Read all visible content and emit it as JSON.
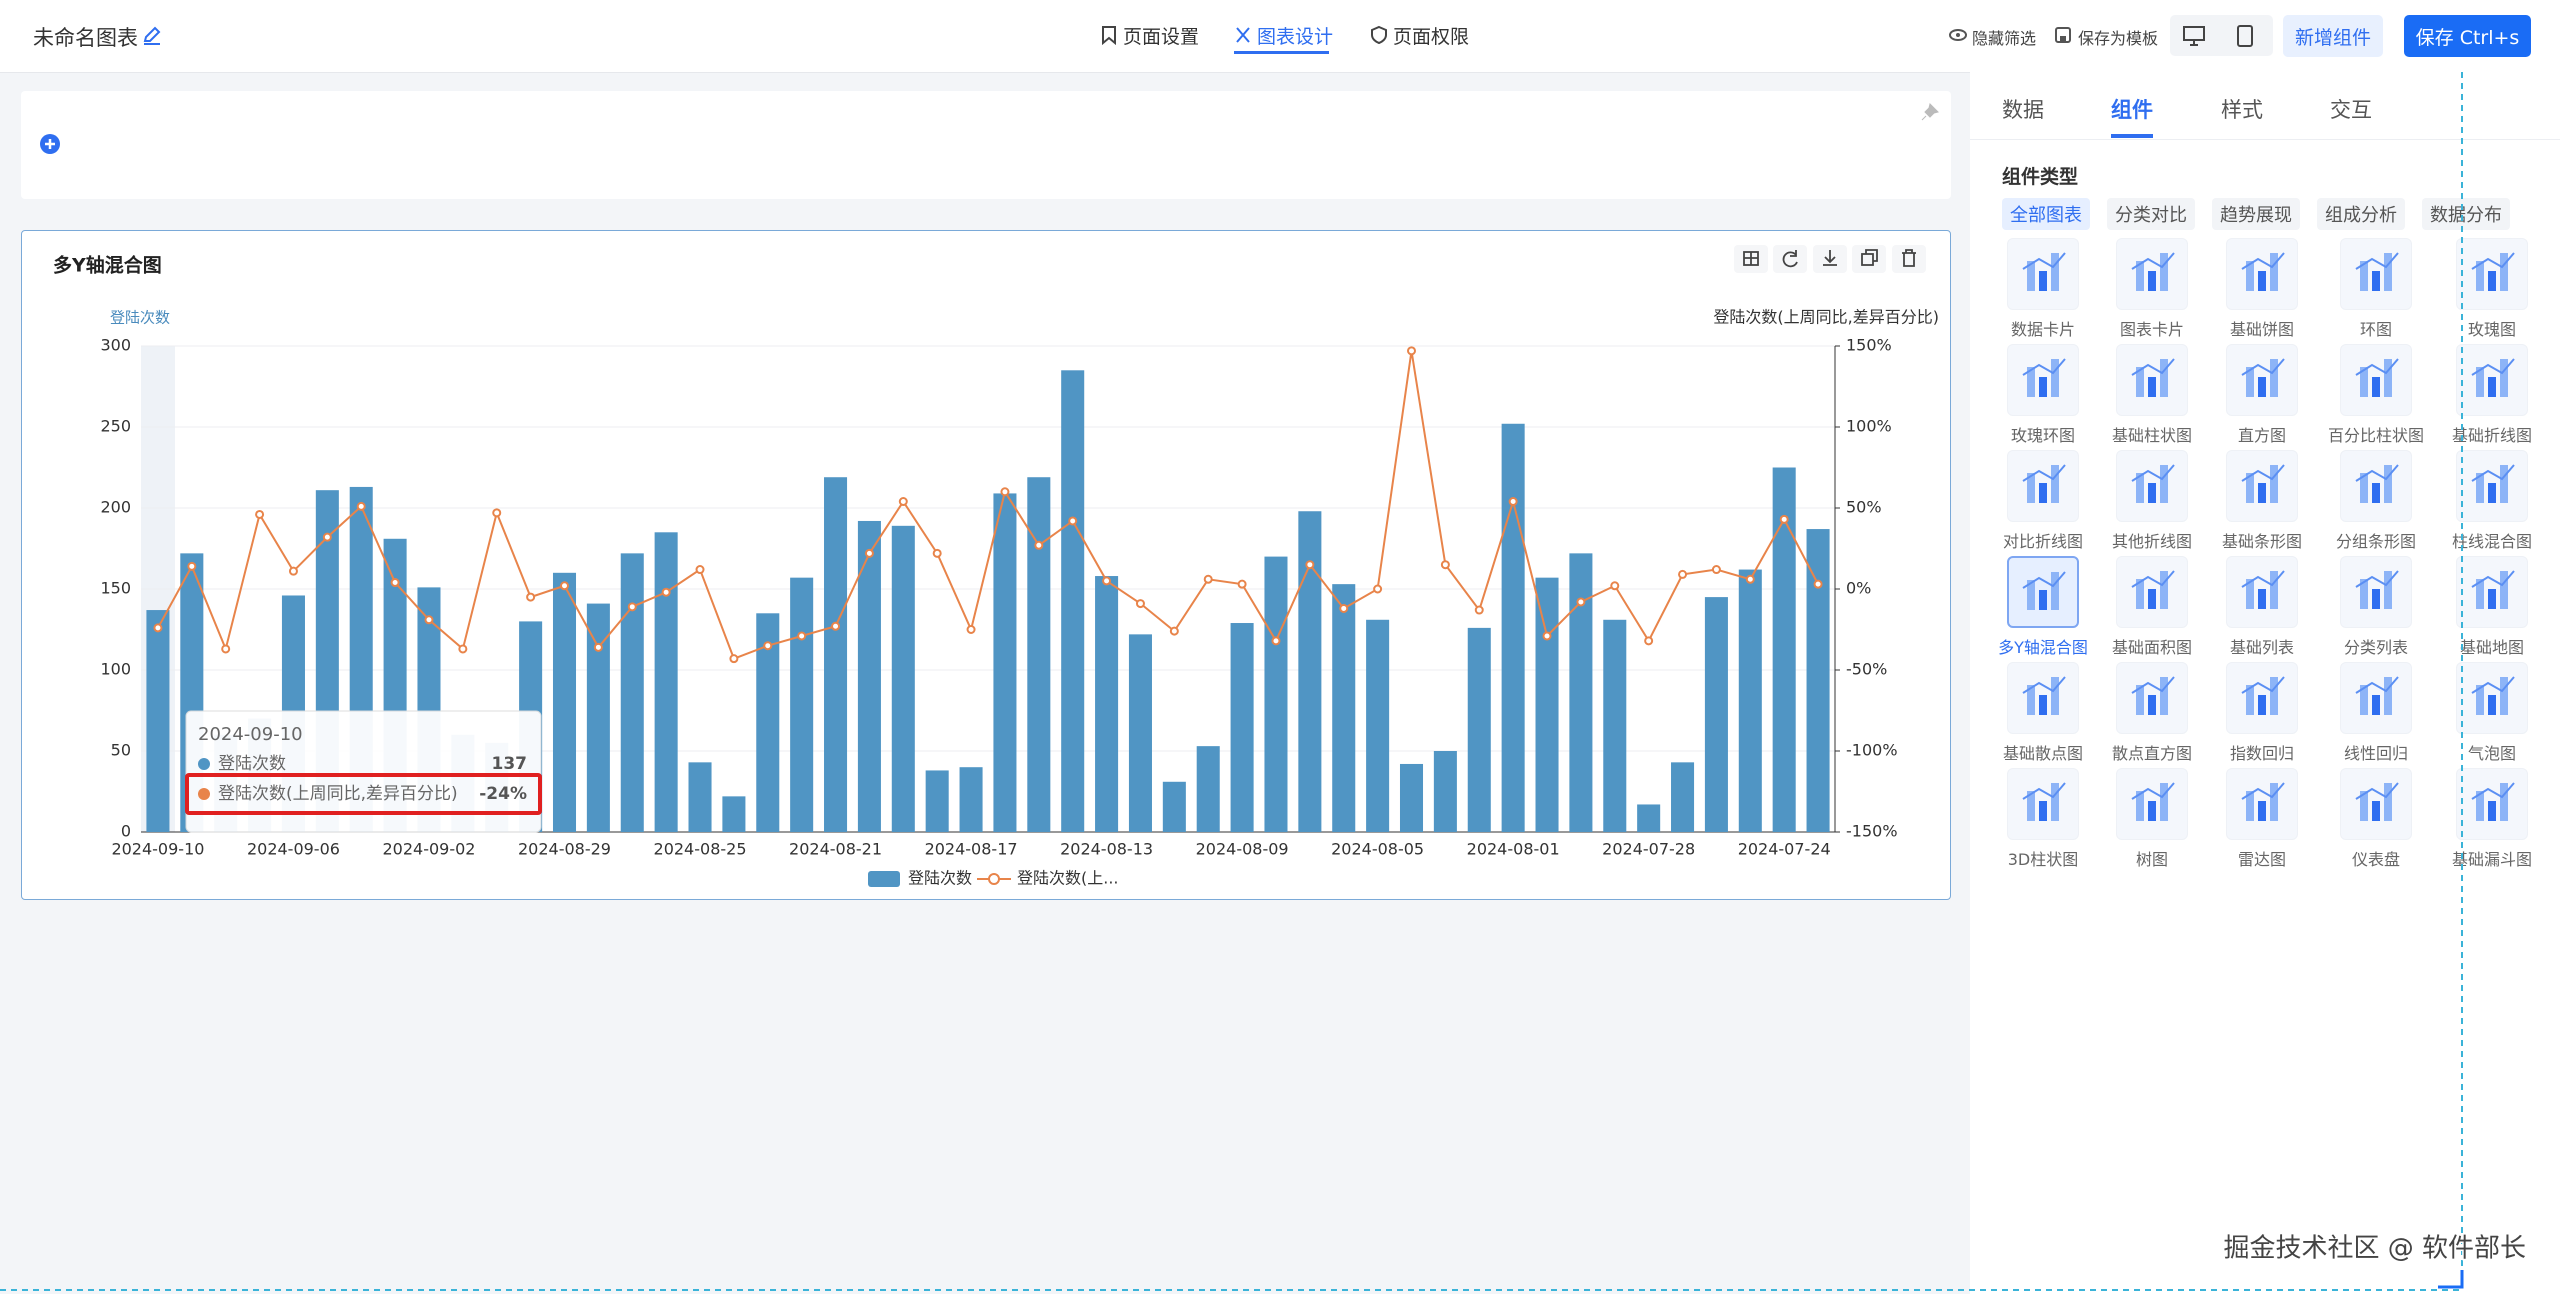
{
  "header": {
    "title": "未命名图表",
    "tabs": [
      "页面设置",
      "图表设计",
      "页面权限"
    ],
    "actions": [
      "隐藏筛选",
      "保存为模板"
    ],
    "buttons": [
      "新增组件",
      "保存 Ctrl+s"
    ]
  },
  "chart_data": {
    "type": "bar",
    "title": "多Y轴混合图",
    "ylabel": "登陆次数",
    "y2label": "登陆次数(上周同比,差异百分比)",
    "categories": [
      "2024-09-10",
      null,
      null,
      null,
      "2024-09-06",
      null,
      null,
      null,
      "2024-09-02",
      null,
      null,
      null,
      "2024-08-29",
      null,
      null,
      null,
      "2024-08-25",
      null,
      null,
      null,
      "2024-08-21",
      null,
      null,
      null,
      "2024-08-17",
      null,
      null,
      null,
      "2024-08-13",
      null,
      null,
      null,
      "2024-08-09",
      null,
      null,
      null,
      "2024-08-05",
      null,
      null,
      null,
      "2024-08-01",
      null,
      null,
      null,
      "2024-07-28",
      null,
      null,
      null,
      "2024-07-24",
      null
    ],
    "series": [
      {
        "name": "登陆次数",
        "color": "#5095c4",
        "values": [
          137,
          172,
          60,
          70,
          146,
          211,
          213,
          181,
          151,
          60,
          55,
          130,
          160,
          141,
          172,
          185,
          43,
          22,
          135,
          157,
          219,
          192,
          189,
          38,
          40,
          209,
          219,
          285,
          158,
          122,
          31,
          53,
          129,
          170,
          198,
          153,
          131,
          42,
          50,
          126,
          252,
          157,
          172,
          131,
          17,
          43,
          145,
          162,
          225,
          187
        ]
      },
      {
        "name": "登陆次数(上周同比,差异百分比)",
        "type": "line",
        "axis": "y2",
        "color": "#e8844a",
        "values": [
          -24,
          14,
          -37,
          46,
          11,
          32,
          51,
          4,
          -19,
          -37,
          47,
          -5,
          2,
          -36,
          -11,
          -2,
          12,
          -43,
          -35,
          -29,
          -23,
          22,
          54,
          22,
          -25,
          60,
          27,
          42,
          5,
          -9,
          -26,
          6,
          3,
          -32,
          15,
          -12,
          0,
          147,
          15,
          -13,
          54,
          -29,
          -8,
          2,
          -32,
          9,
          12,
          6,
          43,
          3
        ]
      }
    ],
    "ylim": [
      0,
      300
    ],
    "yticks": [
      0,
      50,
      100,
      150,
      200,
      250,
      300
    ],
    "y2lim": [
      -150,
      150
    ],
    "y2ticks": [
      {
        "value": -150,
        "label": "-150%"
      },
      {
        "value": -100,
        "label": "-100%"
      },
      {
        "value": -50,
        "label": "-50%"
      },
      {
        "value": 0,
        "label": "0%"
      },
      {
        "value": 50,
        "label": "50%"
      },
      {
        "value": 100,
        "label": "100%"
      },
      {
        "value": 150,
        "label": "150%"
      }
    ],
    "grid": true,
    "legend": [
      "登陆次数",
      "登陆次数(上..."
    ]
  },
  "tooltip": {
    "title": "2024-09-10",
    "rows": [
      [
        "登陆次数",
        "137"
      ],
      [
        "登陆次数(上周同比,差异百分比)",
        "-24%"
      ]
    ]
  },
  "sidebar": {
    "tabs": [
      "数据",
      "组件",
      "样式",
      "交互"
    ],
    "section": "组件类型",
    "filters": [
      "全部图表",
      "分类对比",
      "趋势展现",
      "组成分析",
      "数据分布"
    ],
    "components": [
      "数据卡片",
      "图表卡片",
      "基础饼图",
      "环图",
      "玫瑰图",
      "玫瑰环图",
      "基础柱状图",
      "直方图",
      "百分比柱状图",
      "基础折线图",
      "对比折线图",
      "其他折线图",
      "基础条形图",
      "分组条形图",
      "柱线混合图",
      "多Y轴混合图",
      "基础面积图",
      "基础列表",
      "分类列表",
      "基础地图",
      "基础散点图",
      "散点直方图",
      "指数回归",
      "线性回归",
      "气泡图",
      "3D柱状图",
      "树图",
      "雷达图",
      "仪表盘",
      "基础漏斗图"
    ]
  },
  "watermark": "掘金技术社区 @ 软件部长"
}
